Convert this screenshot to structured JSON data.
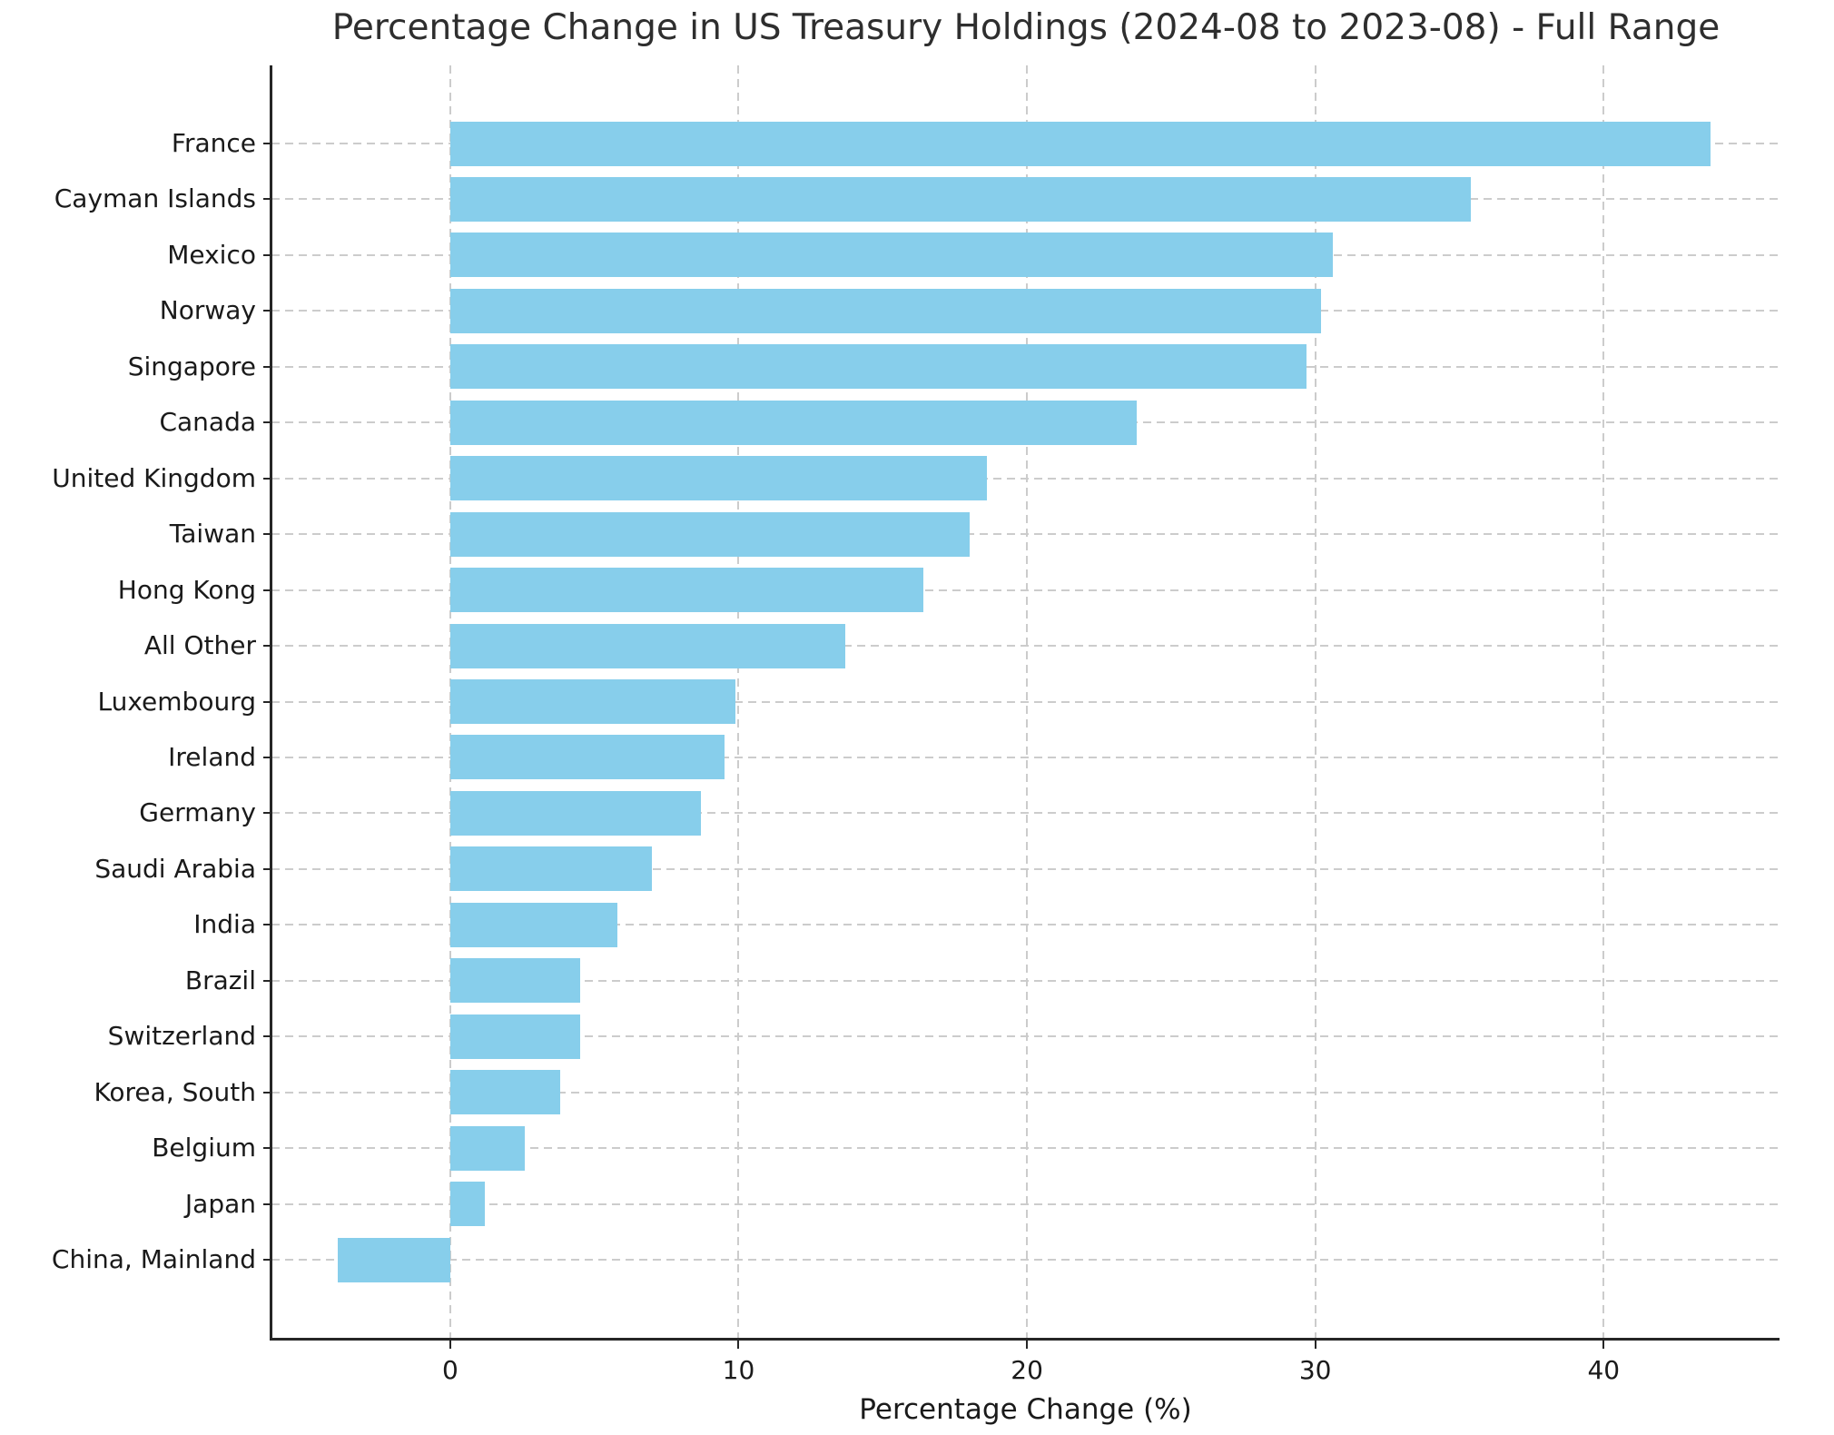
{
  "chart_data": {
    "type": "bar",
    "orientation": "horizontal",
    "title": "Percentage Change in US Treasury Holdings (2024-08 to 2023-08) - Full Range",
    "xlabel": "Percentage Change (%)",
    "categories": [
      "France",
      "Cayman Islands",
      "Mexico",
      "Norway",
      "Singapore",
      "Canada",
      "United Kingdom",
      "Taiwan",
      "Hong Kong",
      "All Other",
      "Luxembourg",
      "Ireland",
      "Germany",
      "Saudi Arabia",
      "India",
      "Brazil",
      "Switzerland",
      "Korea, South",
      "Belgium",
      "Japan",
      "China, Mainland"
    ],
    "values": [
      43.7,
      35.4,
      30.6,
      30.2,
      29.7,
      23.8,
      18.6,
      18.0,
      16.4,
      13.7,
      9.9,
      9.5,
      8.7,
      7.0,
      5.8,
      4.5,
      4.5,
      3.8,
      2.6,
      1.2,
      -3.9
    ],
    "xticks": [
      0,
      10,
      20,
      30,
      40
    ],
    "xlim": [
      -6.2,
      46.1
    ],
    "grid": true,
    "grid_style": "dashed",
    "bar_color": "#87CEEB",
    "grid_color": "#cccccc",
    "axis_color": "#262626",
    "text_color": "#1a1a1a"
  }
}
